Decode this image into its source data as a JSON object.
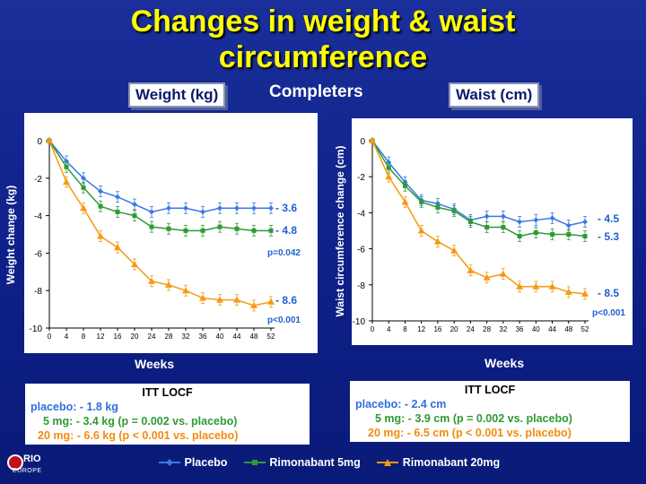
{
  "title_lines": [
    "Changes in weight & waist",
    "circumference"
  ],
  "completers": "Completers",
  "colors": {
    "placebo": "#3a78e8",
    "rim5": "#2f9a35",
    "rim20": "#f59a12",
    "title": "#ffff00"
  },
  "chart_data": [
    {
      "type": "line",
      "title": "Weight (kg)",
      "xlabel": "Weeks",
      "ylabel": "Weight change (kg)",
      "ylim": [
        -10,
        0
      ],
      "yticks": [
        0,
        -2,
        -4,
        -6,
        -8,
        -10
      ],
      "xticks": [
        0,
        4,
        8,
        12,
        16,
        20,
        24,
        28,
        32,
        36,
        40,
        44,
        48,
        52
      ],
      "x": [
        0,
        4,
        8,
        12,
        16,
        20,
        24,
        28,
        32,
        36,
        40,
        44,
        48,
        52
      ],
      "series": [
        {
          "name": "Placebo",
          "values": [
            0,
            -1.1,
            -2.0,
            -2.7,
            -3.0,
            -3.4,
            -3.8,
            -3.6,
            -3.6,
            -3.8,
            -3.6,
            -3.6,
            -3.6,
            -3.6
          ]
        },
        {
          "name": "Rimonabant 5mg",
          "values": [
            0,
            -1.4,
            -2.5,
            -3.5,
            -3.8,
            -4.0,
            -4.6,
            -4.7,
            -4.8,
            -4.8,
            -4.6,
            -4.7,
            -4.8,
            -4.8
          ]
        },
        {
          "name": "Rimonabant 20mg",
          "values": [
            0,
            -2.2,
            -3.6,
            -5.1,
            -5.7,
            -6.6,
            -7.5,
            -7.7,
            -8.0,
            -8.4,
            -8.5,
            -8.5,
            -8.8,
            -8.6
          ]
        }
      ],
      "annotations": {
        "placebo": "- 3.6",
        "rim5": "- 4.8",
        "p5": "p=0.042",
        "rim20": "- 8.6",
        "p20": "p<0.001"
      },
      "itt": {
        "heading": "ITT  LOCF",
        "placebo": "placebo: - 1.8 kg",
        "rim5": "5 mg: - 3.4 kg (p = 0.002 vs. placebo)",
        "rim20": "20 mg: - 6.6 kg (p < 0.001 vs. placebo)"
      }
    },
    {
      "type": "line",
      "title": "Waist (cm)",
      "xlabel": "Weeks",
      "ylabel": "Waist circumference change (cm)",
      "ylim": [
        -10,
        0
      ],
      "yticks": [
        0,
        -2,
        -4,
        -6,
        -8,
        -10
      ],
      "xticks": [
        0,
        4,
        8,
        12,
        16,
        20,
        24,
        28,
        32,
        36,
        40,
        44,
        48,
        52
      ],
      "x": [
        0,
        4,
        8,
        12,
        16,
        20,
        24,
        28,
        32,
        36,
        40,
        44,
        48,
        52
      ],
      "series": [
        {
          "name": "Placebo",
          "values": [
            0,
            -1.2,
            -2.3,
            -3.3,
            -3.5,
            -3.8,
            -4.4,
            -4.2,
            -4.2,
            -4.5,
            -4.4,
            -4.3,
            -4.7,
            -4.5
          ]
        },
        {
          "name": "Rimonabant 5mg",
          "values": [
            0,
            -1.5,
            -2.5,
            -3.4,
            -3.7,
            -3.9,
            -4.5,
            -4.8,
            -4.8,
            -5.3,
            -5.1,
            -5.2,
            -5.2,
            -5.3
          ]
        },
        {
          "name": "Rimonabant 20mg",
          "values": [
            0,
            -2.0,
            -3.4,
            -5.0,
            -5.6,
            -6.1,
            -7.2,
            -7.6,
            -7.4,
            -8.1,
            -8.1,
            -8.1,
            -8.4,
            -8.5
          ]
        }
      ],
      "annotations": {
        "placebo": "- 4.5",
        "rim5": "- 5.3",
        "p5": "",
        "rim20": "- 8.5",
        "p20": "p<0.001"
      },
      "itt": {
        "heading": "ITT  LOCF",
        "placebo": "placebo: - 2.4 cm",
        "rim5": "5 mg: - 3.9 cm (p = 0.002 vs. placebo)",
        "rim20": "20 mg: - 6.5 cm (p < 0.001 vs. placebo)"
      }
    }
  ],
  "legend": [
    "Placebo",
    "Rimonabant 5mg",
    "Rimonabant 20mg"
  ],
  "logo": {
    "name": "RIO",
    "sub": "EUROPE"
  }
}
